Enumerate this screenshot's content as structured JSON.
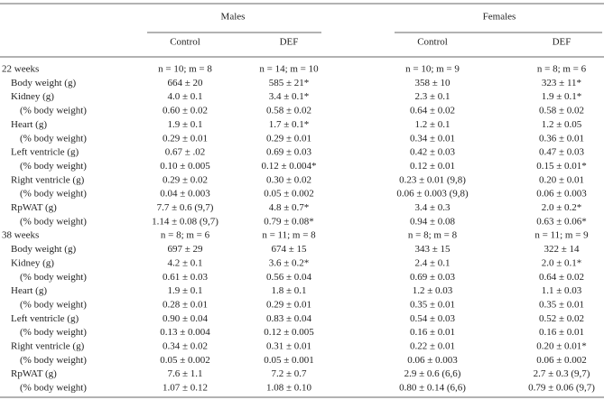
{
  "table": {
    "groups": [
      "Males",
      "Females"
    ],
    "columns": [
      "Control",
      "DEF",
      "Control",
      "DEF"
    ],
    "sections": [
      {
        "label": "22 weeks",
        "cells": [
          "n = 10; m = 8",
          "n = 14; m = 10",
          "n = 10; m = 9",
          "n = 8; m = 6"
        ],
        "measures": [
          {
            "label": "Body weight (g)",
            "cells": [
              "664 ± 20",
              "585 ± 21*",
              "358 ± 10",
              "323 ± 11*"
            ]
          },
          {
            "label": "Kidney (g)",
            "cells": [
              "4.0 ± 0.1",
              "3.4 ± 0.1*",
              "2.3 ± 0.1",
              "1.9 ± 0.1*"
            ],
            "relative": {
              "label": "(% body weight)",
              "cells": [
                "0.60 ± 0.02",
                "0.58 ± 0.02",
                "0.64 ± 0.02",
                "0.58 ± 0.02"
              ]
            }
          },
          {
            "label": "Heart (g)",
            "cells": [
              "1.9 ± 0.1",
              "1.7 ± 0.1*",
              "1.2 ± 0.1",
              "1.2 ± 0.05"
            ],
            "relative": {
              "label": "(% body weight)",
              "cells": [
                "0.29 ± 0.01",
                "0.29 ± 0.01",
                "0.34 ± 0.01",
                "0.36 ± 0.01"
              ]
            }
          },
          {
            "label": "Left ventricle (g)",
            "cells": [
              "0.67 ± .02",
              "0.69 ± 0.03",
              "0.42 ± 0.03",
              "0.47 ± 0.03"
            ],
            "relative": {
              "label": "(% body weight)",
              "cells": [
                "0.10 ± 0.005",
                "0.12 ± 0.004*",
                "0.12 ± 0.01",
                "0.15 ± 0.01*"
              ]
            }
          },
          {
            "label": "Right ventricle (g)",
            "cells": [
              "0.29 ± 0.02",
              "0.30 ± 0.02",
              "0.23 ± 0.01 (9,8)",
              "0.20 ± 0.01"
            ],
            "relative": {
              "label": "(% body weight)",
              "cells": [
                "0.04 ± 0.003",
                "0.05 ± 0.002",
                "0.06 ± 0.003 (9,8)",
                "0.06 ± 0.003"
              ]
            }
          },
          {
            "label": "RpWAT (g)",
            "cells": [
              "7.7 ± 0.6 (9,7)",
              "4.8 ± 0.7*",
              "3.4 ± 0.3",
              "2.0 ± 0.2*"
            ],
            "relative": {
              "label": "(% body weight)",
              "cells": [
                "1.14 ± 0.08 (9,7)",
                "0.79 ± 0.08*",
                "0.94 ± 0.08",
                "0.63 ± 0.06*"
              ]
            }
          }
        ]
      },
      {
        "label": "38 weeks",
        "cells": [
          "n = 8; m = 6",
          "n = 11; m = 8",
          "n = 8; m = 8",
          "n = 11; m = 9"
        ],
        "measures": [
          {
            "label": "Body weight (g)",
            "cells": [
              "697 ± 29",
              "674 ± 15",
              "343 ± 15",
              "322 ± 14"
            ]
          },
          {
            "label": "Kidney (g)",
            "cells": [
              "4.2 ± 0.1",
              "3.6 ± 0.2*",
              "2.4 ± 0.1",
              "2.0 ± 0.1*"
            ],
            "relative": {
              "label": "(% body weight)",
              "cells": [
                "0.61 ± 0.03",
                "0.56 ± 0.04",
                "0.69 ± 0.03",
                "0.64 ± 0.02"
              ]
            }
          },
          {
            "label": "Heart (g)",
            "cells": [
              "1.9 ± 0.1",
              "1.8 ± 0.1",
              "1.2 ± 0.03",
              "1.1 ± 0.03"
            ],
            "relative": {
              "label": "(% body weight)",
              "cells": [
                "0.28 ± 0.01",
                "0.29 ± 0.01",
                "0.35 ± 0.01",
                "0.35 ± 0.01"
              ]
            }
          },
          {
            "label": "Left ventricle (g)",
            "cells": [
              "0.90 ± 0.04",
              "0.83 ± 0.04",
              "0.54 ± 0.03",
              "0.52 ± 0.02"
            ],
            "relative": {
              "label": "(% body weight)",
              "cells": [
                "0.13 ± 0.004",
                "0.12 ± 0.005",
                "0.16 ± 0.01",
                "0.16 ± 0.01"
              ]
            }
          },
          {
            "label": "Right ventricle (g)",
            "cells": [
              "0.34 ± 0.02",
              "0.31 ± 0.01",
              "0.22 ± 0.01",
              "0.20 ± 0.01*"
            ],
            "relative": {
              "label": "(% body weight)",
              "cells": [
                "0.05 ± 0.002",
                "0.05 ± 0.001",
                "0.06 ± 0.003",
                "0.06 ± 0.002"
              ]
            }
          },
          {
            "label": "RpWAT (g)",
            "cells": [
              "7.6 ± 1.1",
              "7.2 ± 0.7",
              "2.9 ± 0.6 (6,6)",
              "2.7 ± 0.3 (9,7)"
            ],
            "relative": {
              "label": "(% body weight)",
              "cells": [
                "1.07 ± 0.12",
                "1.08 ± 0.10",
                "0.80 ± 0.14 (6,6)",
                "0.79 ± 0.06 (9,7)"
              ]
            }
          }
        ]
      }
    ]
  }
}
